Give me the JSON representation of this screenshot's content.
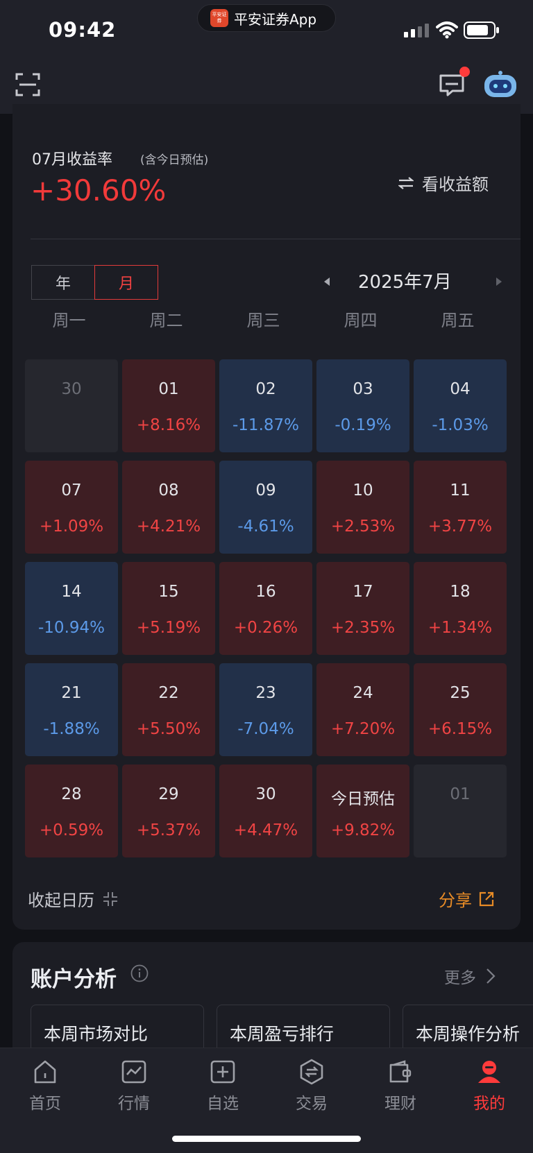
{
  "status_bar": {
    "time": "09:42",
    "app_name": "平安证券App",
    "app_logo_text": "平安证券"
  },
  "profit": {
    "title": "07月收益率",
    "note": "(含今日预估)",
    "rate": "+30.60%",
    "toggle_label": "看收益额",
    "segments": [
      "年",
      "月"
    ],
    "selected_segment": "月",
    "period": "2025年7月",
    "weekdays": [
      "周一",
      "周二",
      "周三",
      "周四",
      "周五"
    ],
    "weeks": [
      [
        {
          "day": "30",
          "value": "",
          "trend": "neutral"
        },
        {
          "day": "01",
          "value": "+8.16%",
          "trend": "up"
        },
        {
          "day": "02",
          "value": "-11.87%",
          "trend": "down"
        },
        {
          "day": "03",
          "value": "-0.19%",
          "trend": "down"
        },
        {
          "day": "04",
          "value": "-1.03%",
          "trend": "down"
        }
      ],
      [
        {
          "day": "07",
          "value": "+1.09%",
          "trend": "up"
        },
        {
          "day": "08",
          "value": "+4.21%",
          "trend": "up"
        },
        {
          "day": "09",
          "value": "-4.61%",
          "trend": "down"
        },
        {
          "day": "10",
          "value": "+2.53%",
          "trend": "up"
        },
        {
          "day": "11",
          "value": "+3.77%",
          "trend": "up"
        }
      ],
      [
        {
          "day": "14",
          "value": "-10.94%",
          "trend": "down"
        },
        {
          "day": "15",
          "value": "+5.19%",
          "trend": "up"
        },
        {
          "day": "16",
          "value": "+0.26%",
          "trend": "up"
        },
        {
          "day": "17",
          "value": "+2.35%",
          "trend": "up"
        },
        {
          "day": "18",
          "value": "+1.34%",
          "trend": "up"
        }
      ],
      [
        {
          "day": "21",
          "value": "-1.88%",
          "trend": "down"
        },
        {
          "day": "22",
          "value": "+5.50%",
          "trend": "up"
        },
        {
          "day": "23",
          "value": "-7.04%",
          "trend": "down"
        },
        {
          "day": "24",
          "value": "+7.20%",
          "trend": "up"
        },
        {
          "day": "25",
          "value": "+6.15%",
          "trend": "up"
        }
      ],
      [
        {
          "day": "28",
          "value": "+0.59%",
          "trend": "up"
        },
        {
          "day": "29",
          "value": "+5.37%",
          "trend": "up"
        },
        {
          "day": "30",
          "value": "+4.47%",
          "trend": "up"
        },
        {
          "day": "今日预估",
          "value": "+9.82%",
          "trend": "up"
        },
        {
          "day": "01",
          "value": "",
          "trend": "neutral"
        }
      ]
    ],
    "collapse_label": "收起日历",
    "share_label": "分享"
  },
  "analysis": {
    "title": "账户分析",
    "more_label": "更多",
    "tabs": [
      "本周市场对比",
      "本周盈亏排行",
      "本周操作分析"
    ]
  },
  "bottom_nav": {
    "items": [
      {
        "label": "首页",
        "icon": "home-icon"
      },
      {
        "label": "行情",
        "icon": "market-icon"
      },
      {
        "label": "自选",
        "icon": "watchlist-icon"
      },
      {
        "label": "交易",
        "icon": "trade-icon"
      },
      {
        "label": "理财",
        "icon": "wallet-icon"
      },
      {
        "label": "我的",
        "icon": "profile-icon"
      }
    ],
    "active": "我的"
  },
  "colors": {
    "up": "#f04444",
    "down": "#5c9ae8",
    "accent": "#e78b26",
    "background": "#111217"
  }
}
